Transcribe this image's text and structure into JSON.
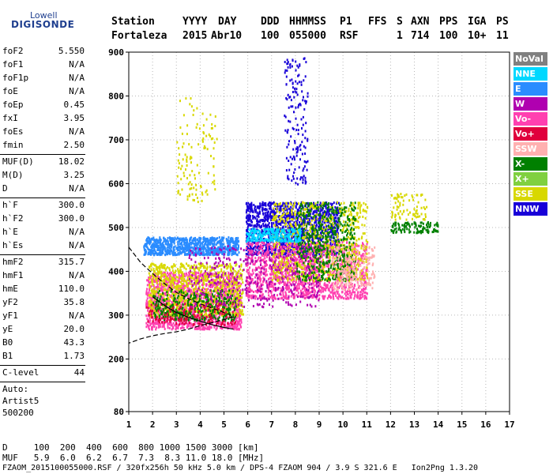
{
  "logo": {
    "line1": "Lowell",
    "line2": "DIGISONDE"
  },
  "header": {
    "labels": [
      "Station",
      "YYYY",
      "DAY",
      "DDD",
      "HHMMSS",
      "P1",
      "FFS",
      "S",
      "AXN",
      "PPS",
      "IGA",
      "PS"
    ],
    "values": [
      "Fortaleza",
      "2015",
      "Abr10",
      "100",
      "055000",
      "RSF",
      "1",
      "714",
      "100",
      "10+",
      "11"
    ]
  },
  "params": [
    {
      "key": "foF2",
      "value": "5.550"
    },
    {
      "key": "foF1",
      "value": "N/A"
    },
    {
      "key": "foF1p",
      "value": "N/A"
    },
    {
      "key": "foE",
      "value": "N/A"
    },
    {
      "key": "foEp",
      "value": "0.45"
    },
    {
      "key": "fxI",
      "value": "3.95"
    },
    {
      "key": "foEs",
      "value": "N/A"
    },
    {
      "key": "fmin",
      "value": "2.50"
    },
    {
      "key": "MUF(D)",
      "value": "18.02"
    },
    {
      "key": "M(D)",
      "value": "3.25"
    },
    {
      "key": "D",
      "value": "N/A"
    },
    {
      "key": "h`F",
      "value": "300.0"
    },
    {
      "key": "h`F2",
      "value": "300.0"
    },
    {
      "key": "h`E",
      "value": "N/A"
    },
    {
      "key": "h`Es",
      "value": "N/A"
    },
    {
      "key": "hmF2",
      "value": "315.7"
    },
    {
      "key": "hmF1",
      "value": "N/A"
    },
    {
      "key": "hmE",
      "value": "110.0"
    },
    {
      "key": "yF2",
      "value": "35.8"
    },
    {
      "key": "yF1",
      "value": "N/A"
    },
    {
      "key": "yE",
      "value": "20.0"
    },
    {
      "key": "B0",
      "value": "43.3"
    },
    {
      "key": "B1",
      "value": "1.73"
    },
    {
      "key": "C-level",
      "value": "44"
    }
  ],
  "auto": {
    "line1": "Auto:",
    "line2": "Artist5",
    "line3": "500200"
  },
  "footer": {
    "d_row": "D     100  200  400  600  800 1000 1500 3000 [km]",
    "muf_row": "MUF   5.9  6.0  6.2  6.7  7.3  8.3 11.0 18.0 [MHz]",
    "file_row": "FZAOM_2015100055000.RSF / 320fx256h 50 kHz 5.0 km / DPS-4 FZAOM 904 / 3.9 S 321.6 E   Ion2Png 1.3.20"
  },
  "legend": [
    {
      "label": "NoVal",
      "color": "#808080"
    },
    {
      "label": "NNE",
      "color": "#00d8ff"
    },
    {
      "label": "E",
      "color": "#2a8cff"
    },
    {
      "label": "W",
      "color": "#b000b0"
    },
    {
      "label": "Vo-",
      "color": "#ff40b0"
    },
    {
      "label": "Vo+",
      "color": "#e0003c"
    },
    {
      "label": "SSW",
      "color": "#ffb0b0"
    },
    {
      "label": "X-",
      "color": "#008000"
    },
    {
      "label": "X+",
      "color": "#80d040"
    },
    {
      "label": "SSE",
      "color": "#d8d800"
    },
    {
      "label": "NNW",
      "color": "#1800d8"
    }
  ],
  "chart_data": {
    "type": "scatter",
    "title": "",
    "xlabel": "",
    "ylabel": "",
    "xlim": [
      1,
      17
    ],
    "ylim": [
      80,
      900
    ],
    "x_ticks": [
      "1",
      "2",
      "3",
      "4",
      "5",
      "6",
      "7",
      "8",
      "9",
      "10",
      "11",
      "12",
      "13",
      "14",
      "15",
      "16",
      "17"
    ],
    "y_ticks": [
      "80",
      "200",
      "300",
      "400",
      "500",
      "600",
      "700",
      "800",
      "900"
    ],
    "grid": true,
    "legend_position": "right",
    "clusters": [
      {
        "name": "E",
        "x_range": [
          1.6,
          5.6
        ],
        "y_range": [
          440,
          480
        ],
        "count": 900
      },
      {
        "name": "Vo-",
        "x_range": [
          1.7,
          5.7
        ],
        "y_range": [
          270,
          400
        ],
        "count": 1400
      },
      {
        "name": "SSE",
        "x_range": [
          1.8,
          5.8
        ],
        "y_range": [
          300,
          420
        ],
        "count": 900
      },
      {
        "name": "X-",
        "x_range": [
          2.0,
          5.5
        ],
        "y_range": [
          290,
          360
        ],
        "count": 350
      },
      {
        "name": "NNW",
        "x_range": [
          5.9,
          9.8
        ],
        "y_range": [
          440,
          560
        ],
        "count": 1400
      },
      {
        "name": "Vo-",
        "x_range": [
          5.9,
          11.0
        ],
        "y_range": [
          340,
          470
        ],
        "count": 1400
      },
      {
        "name": "SSE",
        "x_range": [
          7.0,
          11.0
        ],
        "y_range": [
          380,
          560
        ],
        "count": 800
      },
      {
        "name": "X-",
        "x_range": [
          8.0,
          10.5
        ],
        "y_range": [
          380,
          560
        ],
        "count": 500
      },
      {
        "name": "SSW",
        "x_range": [
          9.5,
          11.3
        ],
        "y_range": [
          360,
          460
        ],
        "count": 200
      },
      {
        "name": "NNE",
        "x_range": [
          5.9,
          8.2
        ],
        "y_range": [
          470,
          500
        ],
        "count": 250
      },
      {
        "name": "X-",
        "x_range": [
          12.0,
          14.0
        ],
        "y_range": [
          490,
          515
        ],
        "count": 120
      },
      {
        "name": "SSE",
        "x_range": [
          12.0,
          13.5
        ],
        "y_range": [
          520,
          580
        ],
        "count": 80
      },
      {
        "name": "NNW",
        "x_range": [
          7.5,
          8.5
        ],
        "y_range": [
          600,
          890
        ],
        "count": 160
      },
      {
        "name": "SSE",
        "x_range": [
          3.0,
          4.7
        ],
        "y_range": [
          560,
          800
        ],
        "count": 120
      },
      {
        "name": "Vo+",
        "x_range": [
          1.7,
          5.5
        ],
        "y_range": [
          280,
          330
        ],
        "count": 150
      },
      {
        "name": "W",
        "x_range": [
          3.5,
          9.0
        ],
        "y_range": [
          320,
          460
        ],
        "count": 400
      }
    ],
    "trace_curves": [
      {
        "name": "profile",
        "points": [
          [
            1.0,
            455
          ],
          [
            1.5,
            420
          ],
          [
            2.0,
            395
          ],
          [
            2.5,
            372
          ],
          [
            3.0,
            352
          ],
          [
            3.5,
            338
          ],
          [
            4.0,
            326
          ],
          [
            4.5,
            316
          ],
          [
            5.0,
            306
          ],
          [
            5.3,
            300
          ],
          [
            5.4,
            296
          ],
          [
            5.0,
            290
          ],
          [
            4.5,
            283
          ],
          [
            4.0,
            276
          ],
          [
            3.5,
            268
          ],
          [
            3.0,
            262
          ],
          [
            2.5,
            258
          ],
          [
            2.0,
            253
          ],
          [
            1.5,
            246
          ],
          [
            1.0,
            236
          ]
        ]
      },
      {
        "name": "trace",
        "points": [
          [
            2.0,
            342
          ],
          [
            2.5,
            322
          ],
          [
            3.0,
            306
          ],
          [
            3.5,
            295
          ],
          [
            4.0,
            286
          ],
          [
            4.5,
            278
          ],
          [
            5.0,
            272
          ],
          [
            5.4,
            268
          ]
        ]
      }
    ]
  }
}
